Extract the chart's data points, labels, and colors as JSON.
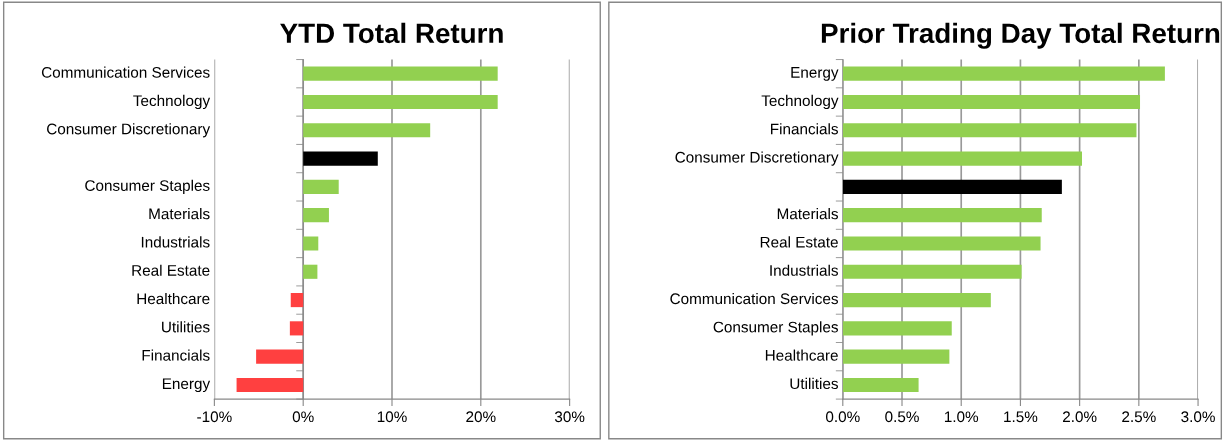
{
  "chart_data": [
    {
      "type": "bar",
      "orientation": "horizontal",
      "title": "YTD Total Return",
      "categories": [
        "Communication Services",
        "Technology",
        "Consumer Discretionary",
        null,
        "Consumer Staples",
        "Materials",
        "Industrials",
        "Real Estate",
        "Healthcare",
        "Utilities",
        "Financials",
        "Energy"
      ],
      "values": [
        21.9,
        21.9,
        14.3,
        8.4,
        4.0,
        2.9,
        1.7,
        1.6,
        -1.4,
        -1.5,
        -5.3,
        -7.5
      ],
      "colors": [
        "#92d050",
        "#92d050",
        "#92d050",
        "#000000",
        "#92d050",
        "#92d050",
        "#92d050",
        "#92d050",
        "#ff4040",
        "#ff4040",
        "#ff4040",
        "#ff4040"
      ],
      "xlim": [
        -10,
        30
      ],
      "xticks": [
        {
          "value": -10,
          "label": "-10%"
        },
        {
          "value": 0,
          "label": "0%"
        },
        {
          "value": 10,
          "label": "10%"
        },
        {
          "value": 20,
          "label": "20%"
        },
        {
          "value": 30,
          "label": "30%"
        }
      ],
      "grid": "x"
    },
    {
      "type": "bar",
      "orientation": "horizontal",
      "title": "Prior Trading Day Total Return",
      "categories": [
        "Energy",
        "Technology",
        "Financials",
        "Consumer Discretionary",
        null,
        "Materials",
        "Real Estate",
        "Industrials",
        "Communication Services",
        "Consumer Staples",
        "Healthcare",
        "Utilities"
      ],
      "values": [
        2.72,
        2.51,
        2.48,
        2.02,
        1.85,
        1.68,
        1.67,
        1.51,
        1.25,
        0.92,
        0.9,
        0.64
      ],
      "colors": [
        "#92d050",
        "#92d050",
        "#92d050",
        "#92d050",
        "#000000",
        "#92d050",
        "#92d050",
        "#92d050",
        "#92d050",
        "#92d050",
        "#92d050",
        "#92d050"
      ],
      "xlim": [
        0,
        3
      ],
      "xticks": [
        {
          "value": 0,
          "label": "0.0%"
        },
        {
          "value": 0.5,
          "label": "0.5%"
        },
        {
          "value": 1,
          "label": "1.0%"
        },
        {
          "value": 1.5,
          "label": "1.5%"
        },
        {
          "value": 2,
          "label": "2.0%"
        },
        {
          "value": 2.5,
          "label": "2.5%"
        },
        {
          "value": 3,
          "label": "3.0%"
        }
      ],
      "grid": "x"
    }
  ]
}
